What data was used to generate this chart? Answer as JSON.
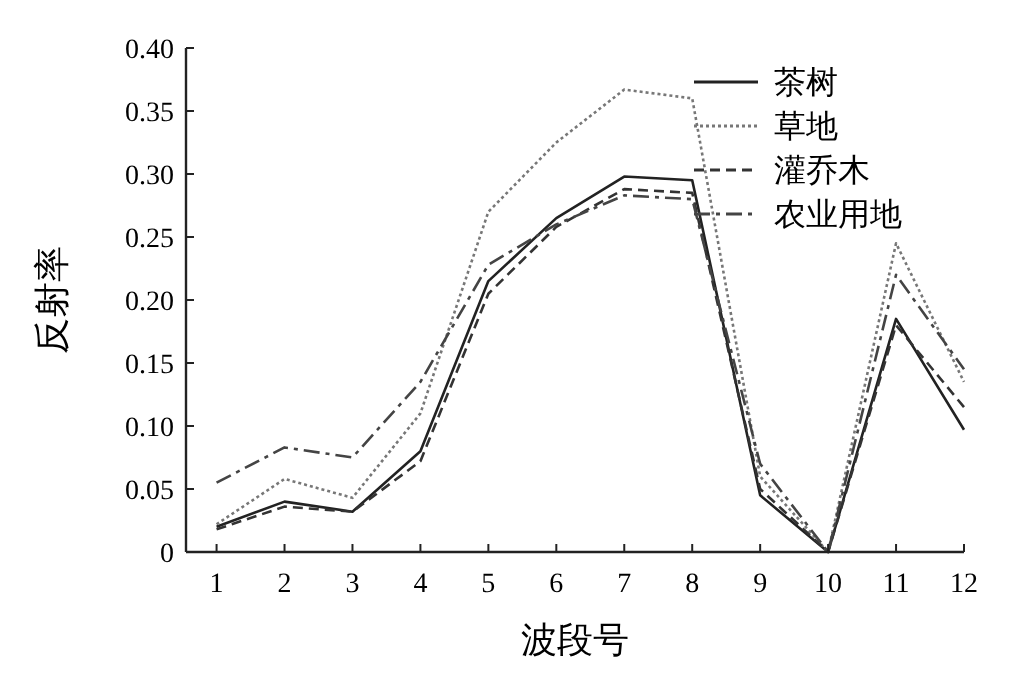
{
  "chart_data": {
    "type": "line",
    "xlabel": "波段号",
    "ylabel": "反射率",
    "x": [
      1,
      2,
      3,
      4,
      5,
      6,
      7,
      8,
      9,
      10,
      11,
      12
    ],
    "xlim": [
      0.55,
      12
    ],
    "xticks": [
      1,
      2,
      3,
      4,
      5,
      6,
      7,
      8,
      9,
      10,
      11,
      12
    ],
    "ylim": [
      0,
      0.4
    ],
    "yticks": [
      0,
      {
        "value": 0.05,
        "label": "0.05"
      },
      {
        "value": 0.1,
        "label": "0.10"
      },
      {
        "value": 0.15,
        "label": "0.15"
      },
      {
        "value": 0.2,
        "label": "0.20"
      },
      {
        "value": 0.25,
        "label": "0.25"
      },
      {
        "value": 0.3,
        "label": "0.30"
      },
      {
        "value": 0.35,
        "label": "0.35"
      },
      {
        "value": 0.4,
        "label": "0.40"
      }
    ],
    "legend": "top right",
    "grid": false,
    "series": [
      {
        "name": "茶树",
        "color": "#222222",
        "line_style": "solid",
        "values": [
          0.02,
          0.04,
          0.032,
          0.08,
          0.215,
          0.265,
          0.298,
          0.295,
          0.045,
          0,
          0.185,
          0.097
        ]
      },
      {
        "name": "草地",
        "color": "#777777",
        "line_style": "dotted",
        "values": [
          0.022,
          0.058,
          0.043,
          0.11,
          0.27,
          0.325,
          0.367,
          0.36,
          0.06,
          0,
          0.245,
          0.135
        ]
      },
      {
        "name": "灌乔木",
        "color": "#333333",
        "line_style": "dashed",
        "values": [
          0.018,
          0.036,
          0.032,
          0.072,
          0.205,
          0.258,
          0.288,
          0.285,
          0.05,
          0,
          0.18,
          0.115
        ]
      },
      {
        "name": "农业用地",
        "color": "#444444",
        "line_style": "dashdot",
        "values": [
          0.055,
          0.083,
          0.075,
          0.135,
          0.228,
          0.26,
          0.283,
          0.28,
          0.07,
          0,
          0.22,
          0.145
        ]
      }
    ]
  }
}
